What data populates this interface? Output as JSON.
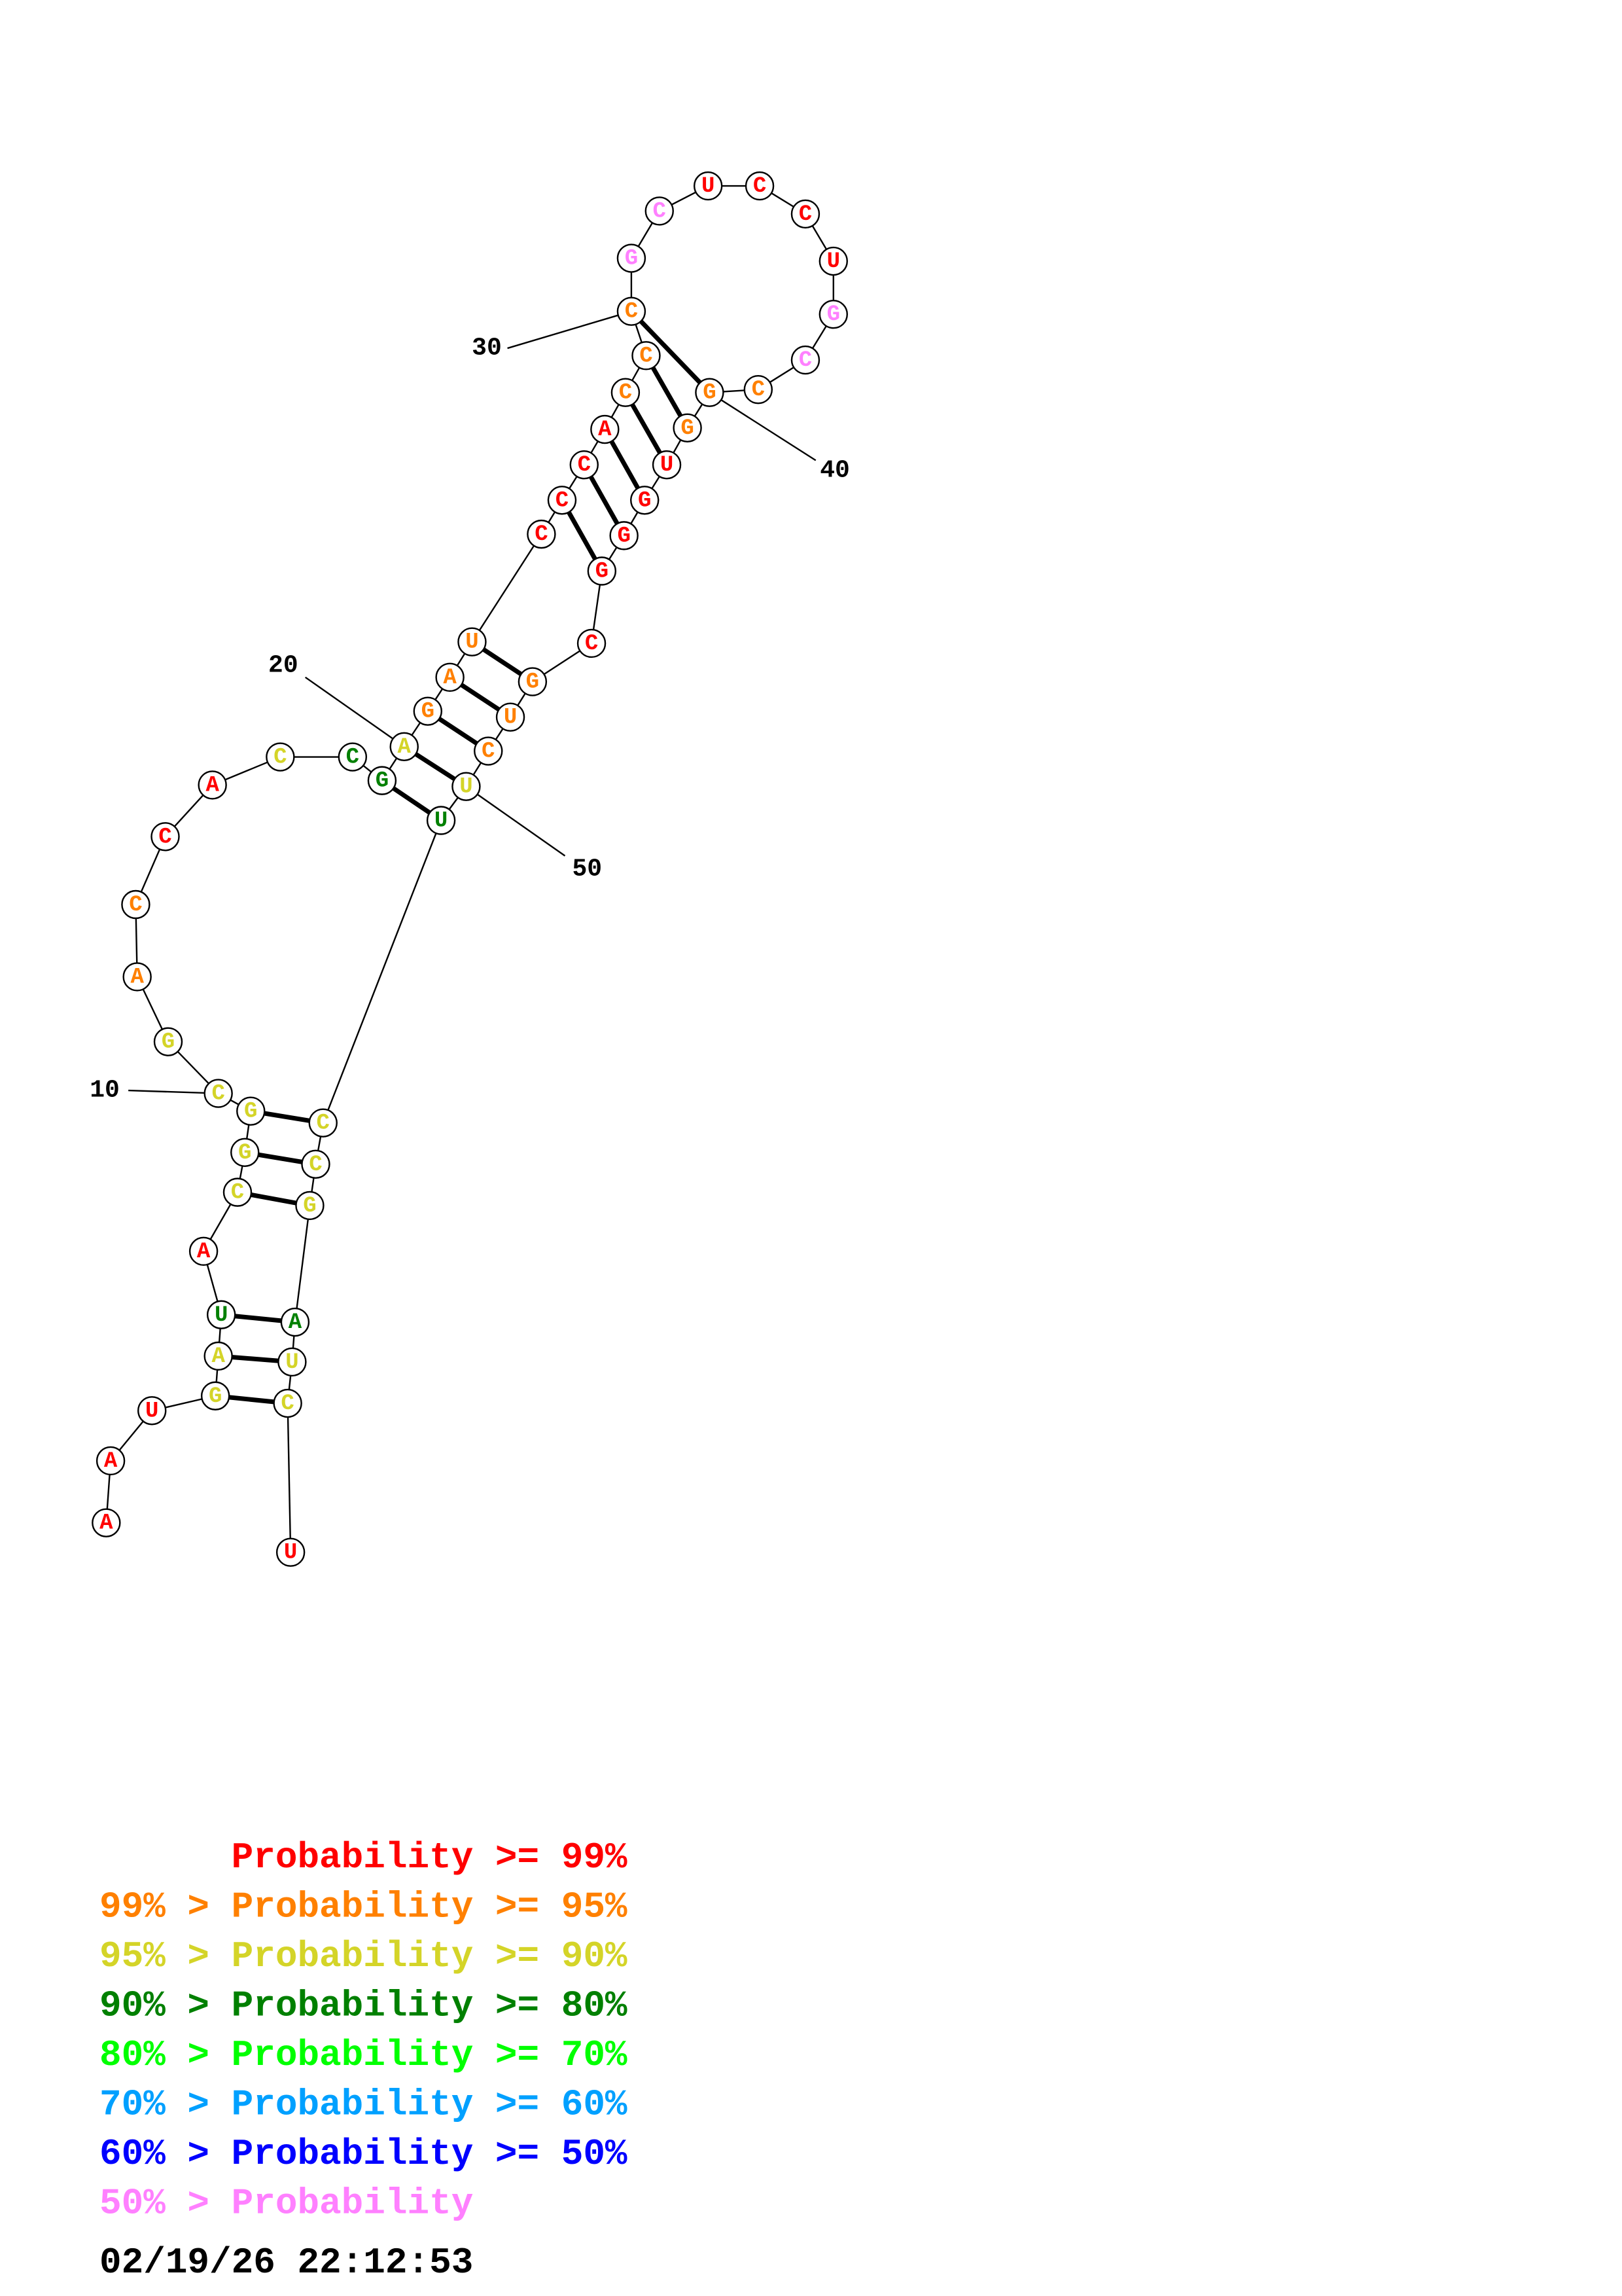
{
  "colors": {
    "p99": "#ff0000",
    "p95": "#ff8000",
    "p90": "#d4d428",
    "p80": "#008000",
    "p70": "#00ff00",
    "p60": "#00a0ff",
    "p50": "#0000ff",
    "plow": "#ff80ff",
    "black": "#000000"
  },
  "sequence": [
    {
      "n": 1,
      "b": "A",
      "p": "p99"
    },
    {
      "n": 2,
      "b": "A",
      "p": "p99"
    },
    {
      "n": 3,
      "b": "U",
      "p": "p99"
    },
    {
      "n": 4,
      "b": "G",
      "p": "p90"
    },
    {
      "n": 5,
      "b": "A",
      "p": "p90"
    },
    {
      "n": 6,
      "b": "U",
      "p": "p80"
    },
    {
      "n": 7,
      "b": "A",
      "p": "p99"
    },
    {
      "n": 8,
      "b": "C",
      "p": "p90"
    },
    {
      "n": 9,
      "b": "G",
      "p": "p90"
    },
    {
      "n": 10,
      "b": "G",
      "p": "p90"
    },
    {
      "n": 11,
      "b": "C",
      "p": "p90"
    },
    {
      "n": 12,
      "b": "G",
      "p": "p90"
    },
    {
      "n": 13,
      "b": "A",
      "p": "p95"
    },
    {
      "n": 14,
      "b": "C",
      "p": "p95"
    },
    {
      "n": 15,
      "b": "C",
      "p": "p99"
    },
    {
      "n": 16,
      "b": "A",
      "p": "p99"
    },
    {
      "n": 17,
      "b": "C",
      "p": "p90"
    },
    {
      "n": 18,
      "b": "C",
      "p": "p80"
    },
    {
      "n": 19,
      "b": "G",
      "p": "p80"
    },
    {
      "n": 20,
      "b": "A",
      "p": "p90"
    },
    {
      "n": 21,
      "b": "G",
      "p": "p95"
    },
    {
      "n": 22,
      "b": "A",
      "p": "p95"
    },
    {
      "n": 23,
      "b": "U",
      "p": "p95"
    },
    {
      "n": 24,
      "b": "C",
      "p": "p99"
    },
    {
      "n": 25,
      "b": "C",
      "p": "p99"
    },
    {
      "n": 26,
      "b": "C",
      "p": "p99"
    },
    {
      "n": 27,
      "b": "A",
      "p": "p99"
    },
    {
      "n": 28,
      "b": "C",
      "p": "p95"
    },
    {
      "n": 29,
      "b": "C",
      "p": "p95"
    },
    {
      "n": 30,
      "b": "C",
      "p": "p95"
    },
    {
      "n": 31,
      "b": "G",
      "p": "plow"
    },
    {
      "n": 32,
      "b": "C",
      "p": "plow"
    },
    {
      "n": 33,
      "b": "U",
      "p": "p99"
    },
    {
      "n": 34,
      "b": "C",
      "p": "p99"
    },
    {
      "n": 35,
      "b": "C",
      "p": "p99"
    },
    {
      "n": 36,
      "b": "U",
      "p": "p99"
    },
    {
      "n": 37,
      "b": "G",
      "p": "plow"
    },
    {
      "n": 38,
      "b": "C",
      "p": "plow"
    },
    {
      "n": 39,
      "b": "C",
      "p": "p95"
    },
    {
      "n": 40,
      "b": "G",
      "p": "p95"
    },
    {
      "n": 41,
      "b": "G",
      "p": "p95"
    },
    {
      "n": 42,
      "b": "U",
      "p": "p99"
    },
    {
      "n": 43,
      "b": "G",
      "p": "p99"
    },
    {
      "n": 44,
      "b": "G",
      "p": "p99"
    },
    {
      "n": 45,
      "b": "G",
      "p": "p99"
    },
    {
      "n": 46,
      "b": "C",
      "p": "p99"
    },
    {
      "n": 47,
      "b": "G",
      "p": "p95"
    },
    {
      "n": 48,
      "b": "U",
      "p": "p95"
    },
    {
      "n": 49,
      "b": "C",
      "p": "p95"
    },
    {
      "n": 50,
      "b": "U",
      "p": "p90"
    },
    {
      "n": 51,
      "b": "U",
      "p": "p80"
    },
    {
      "n": 52,
      "b": "C",
      "p": "p90"
    },
    {
      "n": 53,
      "b": "C",
      "p": "p90"
    },
    {
      "n": 54,
      "b": "G",
      "p": "p90"
    },
    {
      "n": 55,
      "b": "A",
      "p": "p80"
    },
    {
      "n": 56,
      "b": "U",
      "p": "p90"
    },
    {
      "n": 57,
      "b": "C",
      "p": "p90"
    },
    {
      "n": 58,
      "b": "U",
      "p": "p99"
    }
  ],
  "pairs": [
    [
      4,
      57
    ],
    [
      5,
      56
    ],
    [
      6,
      55
    ],
    [
      8,
      54
    ],
    [
      9,
      53
    ],
    [
      10,
      52
    ],
    [
      19,
      51
    ],
    [
      20,
      50
    ],
    [
      21,
      49
    ],
    [
      22,
      48
    ],
    [
      23,
      47
    ],
    [
      25,
      45
    ],
    [
      26,
      44
    ],
    [
      27,
      43
    ],
    [
      28,
      42
    ],
    [
      29,
      41
    ],
    [
      30,
      40
    ]
  ],
  "ticks": [
    {
      "n": 10,
      "label": "10"
    },
    {
      "n": 20,
      "label": "20"
    },
    {
      "n": 30,
      "label": "30"
    },
    {
      "n": 40,
      "label": "40"
    },
    {
      "n": 50,
      "label": "50"
    }
  ],
  "legend": [
    {
      "text": "      Probability >= 99%",
      "color": "p99"
    },
    {
      "text": "99% > Probability >= 95%",
      "color": "p95"
    },
    {
      "text": "95% > Probability >= 90%",
      "color": "p90"
    },
    {
      "text": "90% > Probability >= 80%",
      "color": "p80"
    },
    {
      "text": "80% > Probability >= 70%",
      "color": "p70"
    },
    {
      "text": "70% > Probability >= 60%",
      "color": "p60"
    },
    {
      "text": "60% > Probability >= 50%",
      "color": "p50"
    },
    {
      "text": "50% > Probability",
      "color": "plow"
    }
  ],
  "timestamp": "02/19/26 22:12:53"
}
